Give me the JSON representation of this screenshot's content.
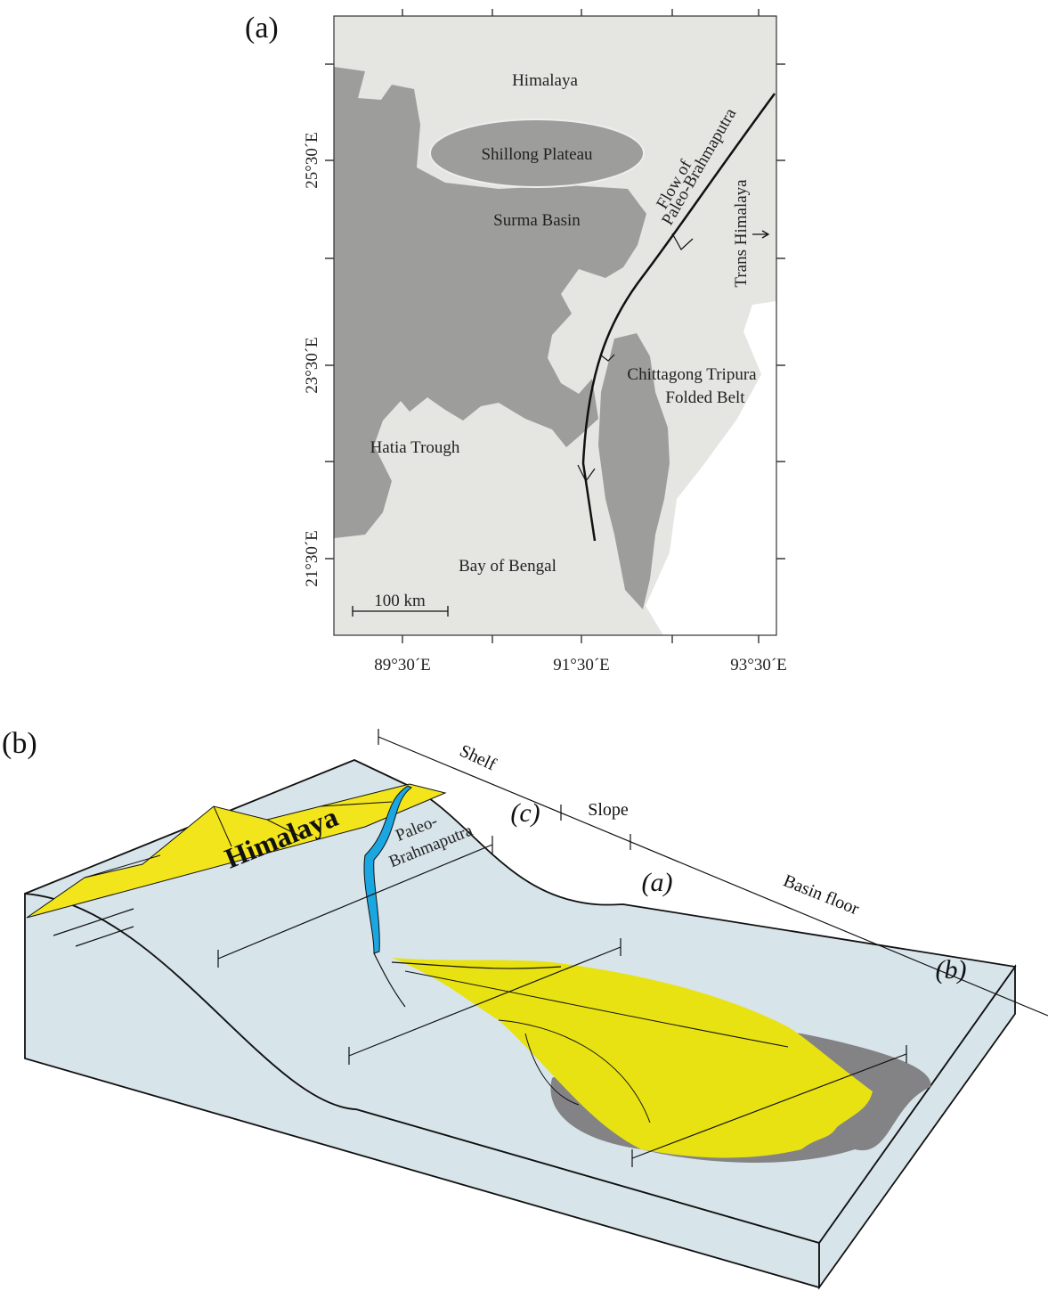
{
  "panel_a": {
    "label": "(a)",
    "regions": {
      "himalaya": "Himalaya",
      "shillong": "Shillong Plateau",
      "surma": "Surma Basin",
      "hatia": "Hatia Trough",
      "bay": "Bay of Bengal",
      "trans": "Trans Himalaya"
    },
    "flow_label": [
      "Flow of",
      "Paleo-Brahmaputra"
    ],
    "folded_belt": [
      "Chittagong Tripura",
      "Folded Belt"
    ],
    "scale_bar": "100 km",
    "lat_labels": [
      "25°30´E",
      "23°30´E",
      "21°30´E"
    ],
    "lon_labels": [
      "89°30´E",
      "91°30´E",
      "93°30´E"
    ]
  },
  "panel_b": {
    "label": "(b)",
    "zones": [
      "Shelf",
      "Slope",
      "Basin floor"
    ],
    "mountain": "Himalaya",
    "river": [
      "Paleo-",
      "Brahmaputra"
    ],
    "sections": [
      "(c)",
      "(a)",
      "(b)"
    ]
  }
}
